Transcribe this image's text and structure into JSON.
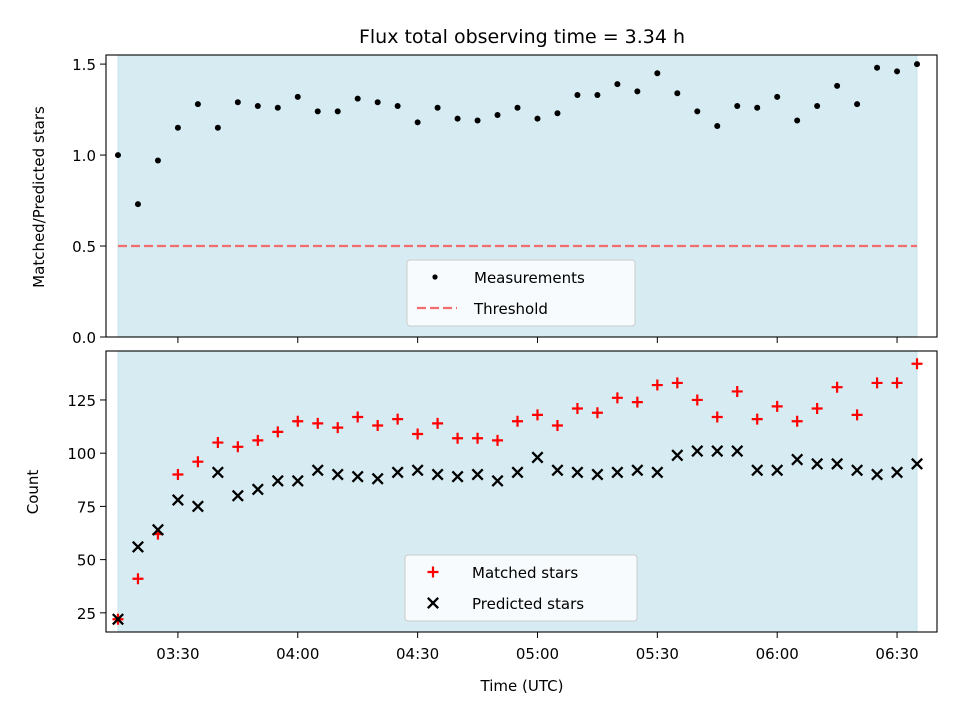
{
  "chart_data": [
    {
      "type": "scatter",
      "title": "Flux total observing time = 3.34 h",
      "xlabel": "",
      "ylabel": "Matched/Predicted stars",
      "xlim": [
        "03:12",
        "06:40"
      ],
      "ylim": [
        0,
        1.55
      ],
      "yticks": [
        "0.0",
        "0.5",
        "1.0",
        "1.5"
      ],
      "shaded_span": [
        "03:15",
        "06:35"
      ],
      "shade_color": "#add8e6",
      "legend": {
        "placement": "bottom-center",
        "entries": [
          "Measurements",
          "Threshold"
        ]
      },
      "series": [
        {
          "name": "Measurements",
          "marker": "dot",
          "color": "#000000",
          "x": [
            "03:15",
            "03:20",
            "03:25",
            "03:30",
            "03:35",
            "03:40",
            "03:45",
            "03:50",
            "03:55",
            "04:00",
            "04:05",
            "04:10",
            "04:15",
            "04:20",
            "04:25",
            "04:30",
            "04:35",
            "04:40",
            "04:45",
            "04:50",
            "04:55",
            "05:00",
            "05:05",
            "05:10",
            "05:15",
            "05:20",
            "05:25",
            "05:30",
            "05:35",
            "05:40",
            "05:45",
            "05:50",
            "05:55",
            "06:00",
            "06:05",
            "06:10",
            "06:15",
            "06:20",
            "06:25",
            "06:30",
            "06:35"
          ],
          "values": [
            1.0,
            0.73,
            0.97,
            1.15,
            1.28,
            1.15,
            1.29,
            1.27,
            1.26,
            1.32,
            1.24,
            1.24,
            1.31,
            1.29,
            1.27,
            1.18,
            1.26,
            1.2,
            1.19,
            1.22,
            1.26,
            1.2,
            1.23,
            1.33,
            1.33,
            1.39,
            1.35,
            1.45,
            1.34,
            1.24,
            1.16,
            1.27,
            1.26,
            1.32,
            1.19,
            1.27,
            1.38,
            1.28,
            1.48,
            1.46,
            1.5
          ]
        },
        {
          "name": "Threshold",
          "style": "dashed",
          "color": "#f26d6d",
          "x": [
            "03:15",
            "06:35"
          ],
          "values": [
            0.5,
            0.5
          ]
        }
      ]
    },
    {
      "type": "scatter",
      "title": "",
      "xlabel": "Time (UTC)",
      "ylabel": "Count",
      "xlim": [
        "03:12",
        "06:40"
      ],
      "ylim": [
        16,
        148
      ],
      "yticks": [
        "25",
        "50",
        "75",
        "100",
        "125"
      ],
      "xticks": [
        "03:30",
        "04:00",
        "04:30",
        "05:00",
        "05:30",
        "06:00",
        "06:30"
      ],
      "shaded_span": [
        "03:15",
        "06:35"
      ],
      "shade_color": "#add8e6",
      "legend": {
        "placement": "bottom-center",
        "entries": [
          "Matched stars",
          "Predicted stars"
        ]
      },
      "series": [
        {
          "name": "Matched stars",
          "marker": "plus",
          "color": "#ff0000",
          "x": [
            "03:15",
            "03:20",
            "03:25",
            "03:30",
            "03:35",
            "03:40",
            "03:45",
            "03:50",
            "03:55",
            "04:00",
            "04:05",
            "04:10",
            "04:15",
            "04:20",
            "04:25",
            "04:30",
            "04:35",
            "04:40",
            "04:45",
            "04:50",
            "04:55",
            "05:00",
            "05:05",
            "05:10",
            "05:15",
            "05:20",
            "05:25",
            "05:30",
            "05:35",
            "05:40",
            "05:45",
            "05:50",
            "05:55",
            "06:00",
            "06:05",
            "06:10",
            "06:15",
            "06:20",
            "06:25",
            "06:30",
            "06:35"
          ],
          "values": [
            22,
            41,
            62,
            90,
            96,
            105,
            103,
            106,
            110,
            115,
            114,
            112,
            117,
            113,
            116,
            109,
            114,
            107,
            107,
            106,
            115,
            118,
            113,
            121,
            119,
            126,
            124,
            132,
            133,
            125,
            117,
            129,
            116,
            122,
            115,
            121,
            131,
            118,
            133,
            133,
            142
          ]
        },
        {
          "name": "Predicted stars",
          "marker": "x",
          "color": "#000000",
          "x": [
            "03:15",
            "03:20",
            "03:25",
            "03:30",
            "03:35",
            "03:40",
            "03:45",
            "03:50",
            "03:55",
            "04:00",
            "04:05",
            "04:10",
            "04:15",
            "04:20",
            "04:25",
            "04:30",
            "04:35",
            "04:40",
            "04:45",
            "04:50",
            "04:55",
            "05:00",
            "05:05",
            "05:10",
            "05:15",
            "05:20",
            "05:25",
            "05:30",
            "05:35",
            "05:40",
            "05:45",
            "05:50",
            "05:55",
            "06:00",
            "06:05",
            "06:10",
            "06:15",
            "06:20",
            "06:25",
            "06:30",
            "06:35"
          ],
          "values": [
            22,
            56,
            64,
            78,
            75,
            91,
            80,
            83,
            87,
            87,
            92,
            90,
            89,
            88,
            91,
            92,
            90,
            89,
            90,
            87,
            91,
            98,
            92,
            91,
            90,
            91,
            92,
            91,
            99,
            101,
            101,
            101,
            92,
            92,
            97,
            95,
            95,
            92,
            90,
            91,
            95
          ]
        }
      ]
    }
  ]
}
